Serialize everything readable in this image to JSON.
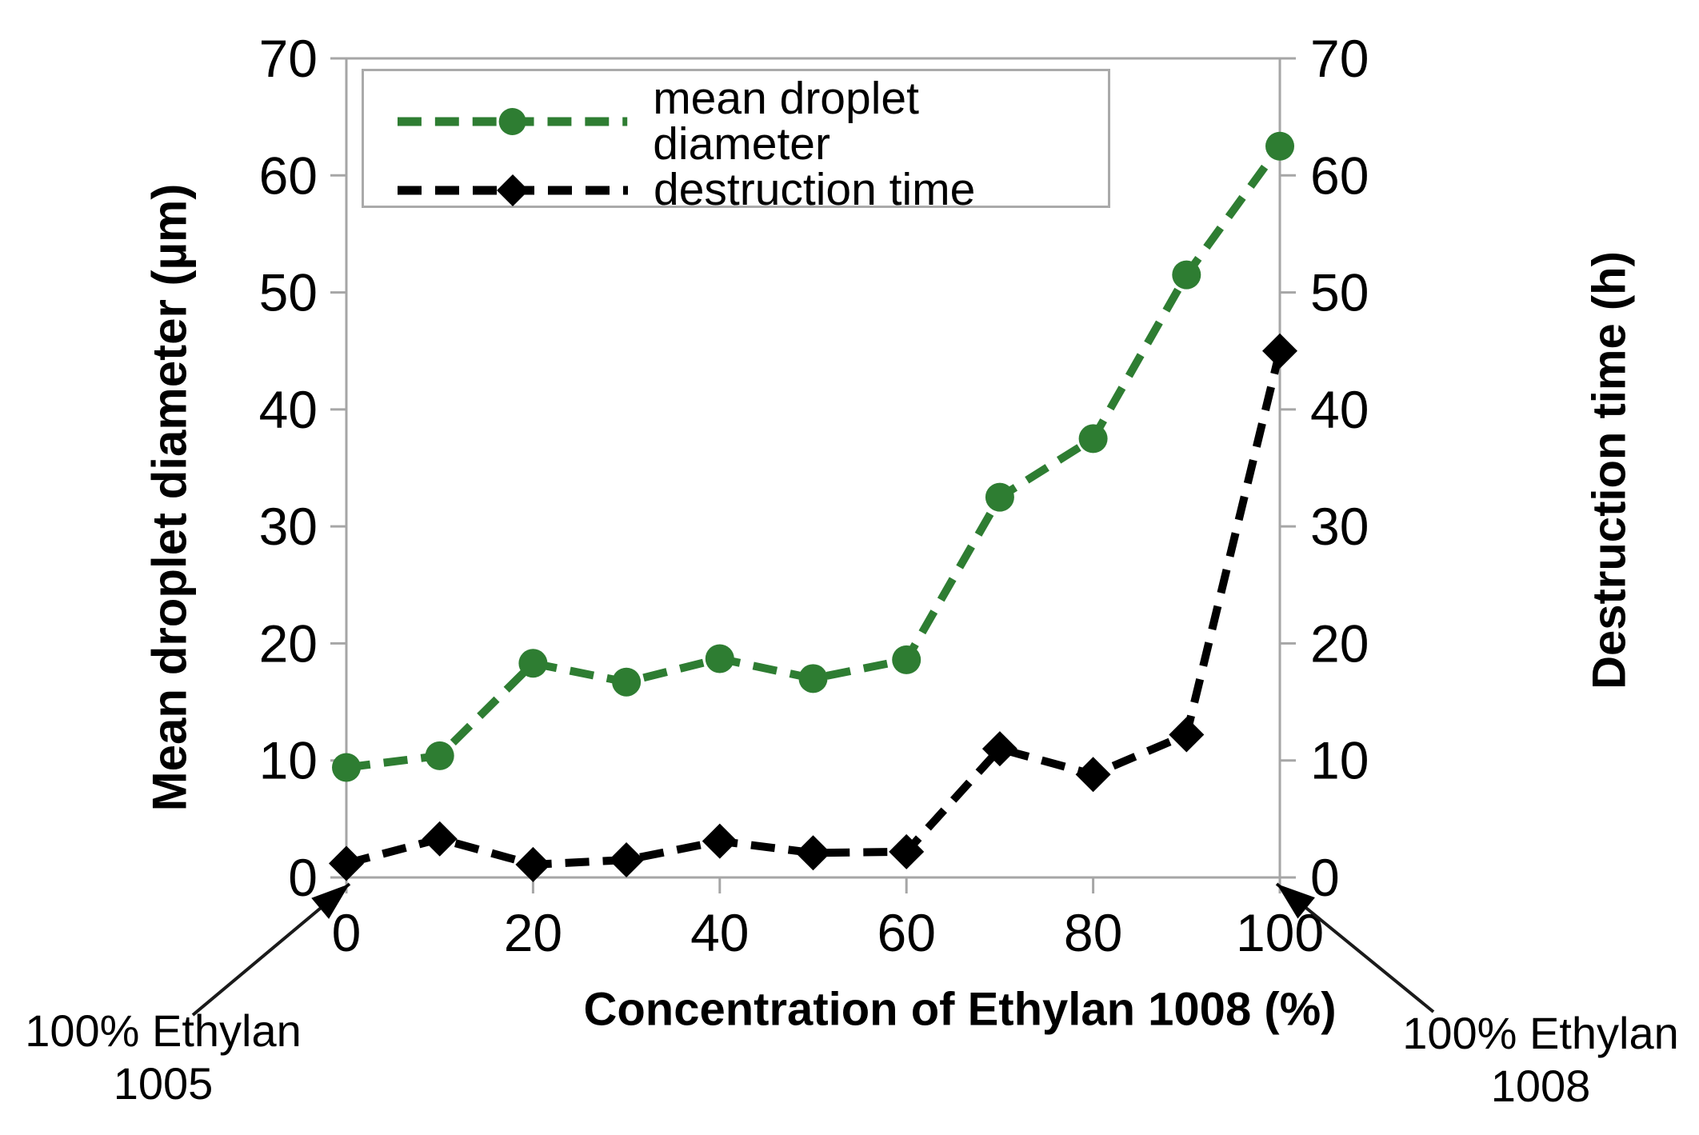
{
  "chart_data": {
    "type": "line",
    "x": [
      0,
      10,
      20,
      30,
      40,
      50,
      60,
      70,
      80,
      90,
      100
    ],
    "x_ticks": [
      0,
      20,
      40,
      60,
      80,
      100
    ],
    "y_ticks": [
      0,
      10,
      20,
      30,
      40,
      50,
      60,
      70
    ],
    "ylim_left": [
      0,
      70
    ],
    "ylim_right": [
      0,
      70
    ],
    "xlim": [
      0,
      100
    ],
    "xlabel": "Concentration of Ethylan 1008 (%)",
    "ylabel_left": "Mean droplet diameter (µm)",
    "ylabel_right": "Destruction time (h)",
    "grid": false,
    "legend_position": "top-left-inside",
    "axis_color": "#a6a6a6",
    "text_color": "#000000",
    "series": [
      {
        "name": "mean droplet diameter",
        "axis": "left",
        "color": "#2e7d32",
        "marker": "circle",
        "line_style": "dashed",
        "values": [
          9.4,
          10.4,
          18.3,
          16.7,
          18.7,
          17.0,
          18.6,
          32.5,
          37.5,
          51.5,
          62.5
        ]
      },
      {
        "name": "destruction time",
        "axis": "right",
        "color": "#000000",
        "marker": "diamond",
        "line_style": "dashed",
        "values": [
          1.2,
          3.3,
          1.1,
          1.5,
          3.1,
          2.1,
          2.2,
          11.0,
          8.8,
          12.2,
          45.0
        ]
      }
    ],
    "annotations": [
      {
        "lines": [
          "100% Ethylan",
          "1005"
        ],
        "points_to_x": 0
      },
      {
        "lines": [
          "100% Ethylan",
          "1008"
        ],
        "points_to_x": 100
      }
    ]
  }
}
